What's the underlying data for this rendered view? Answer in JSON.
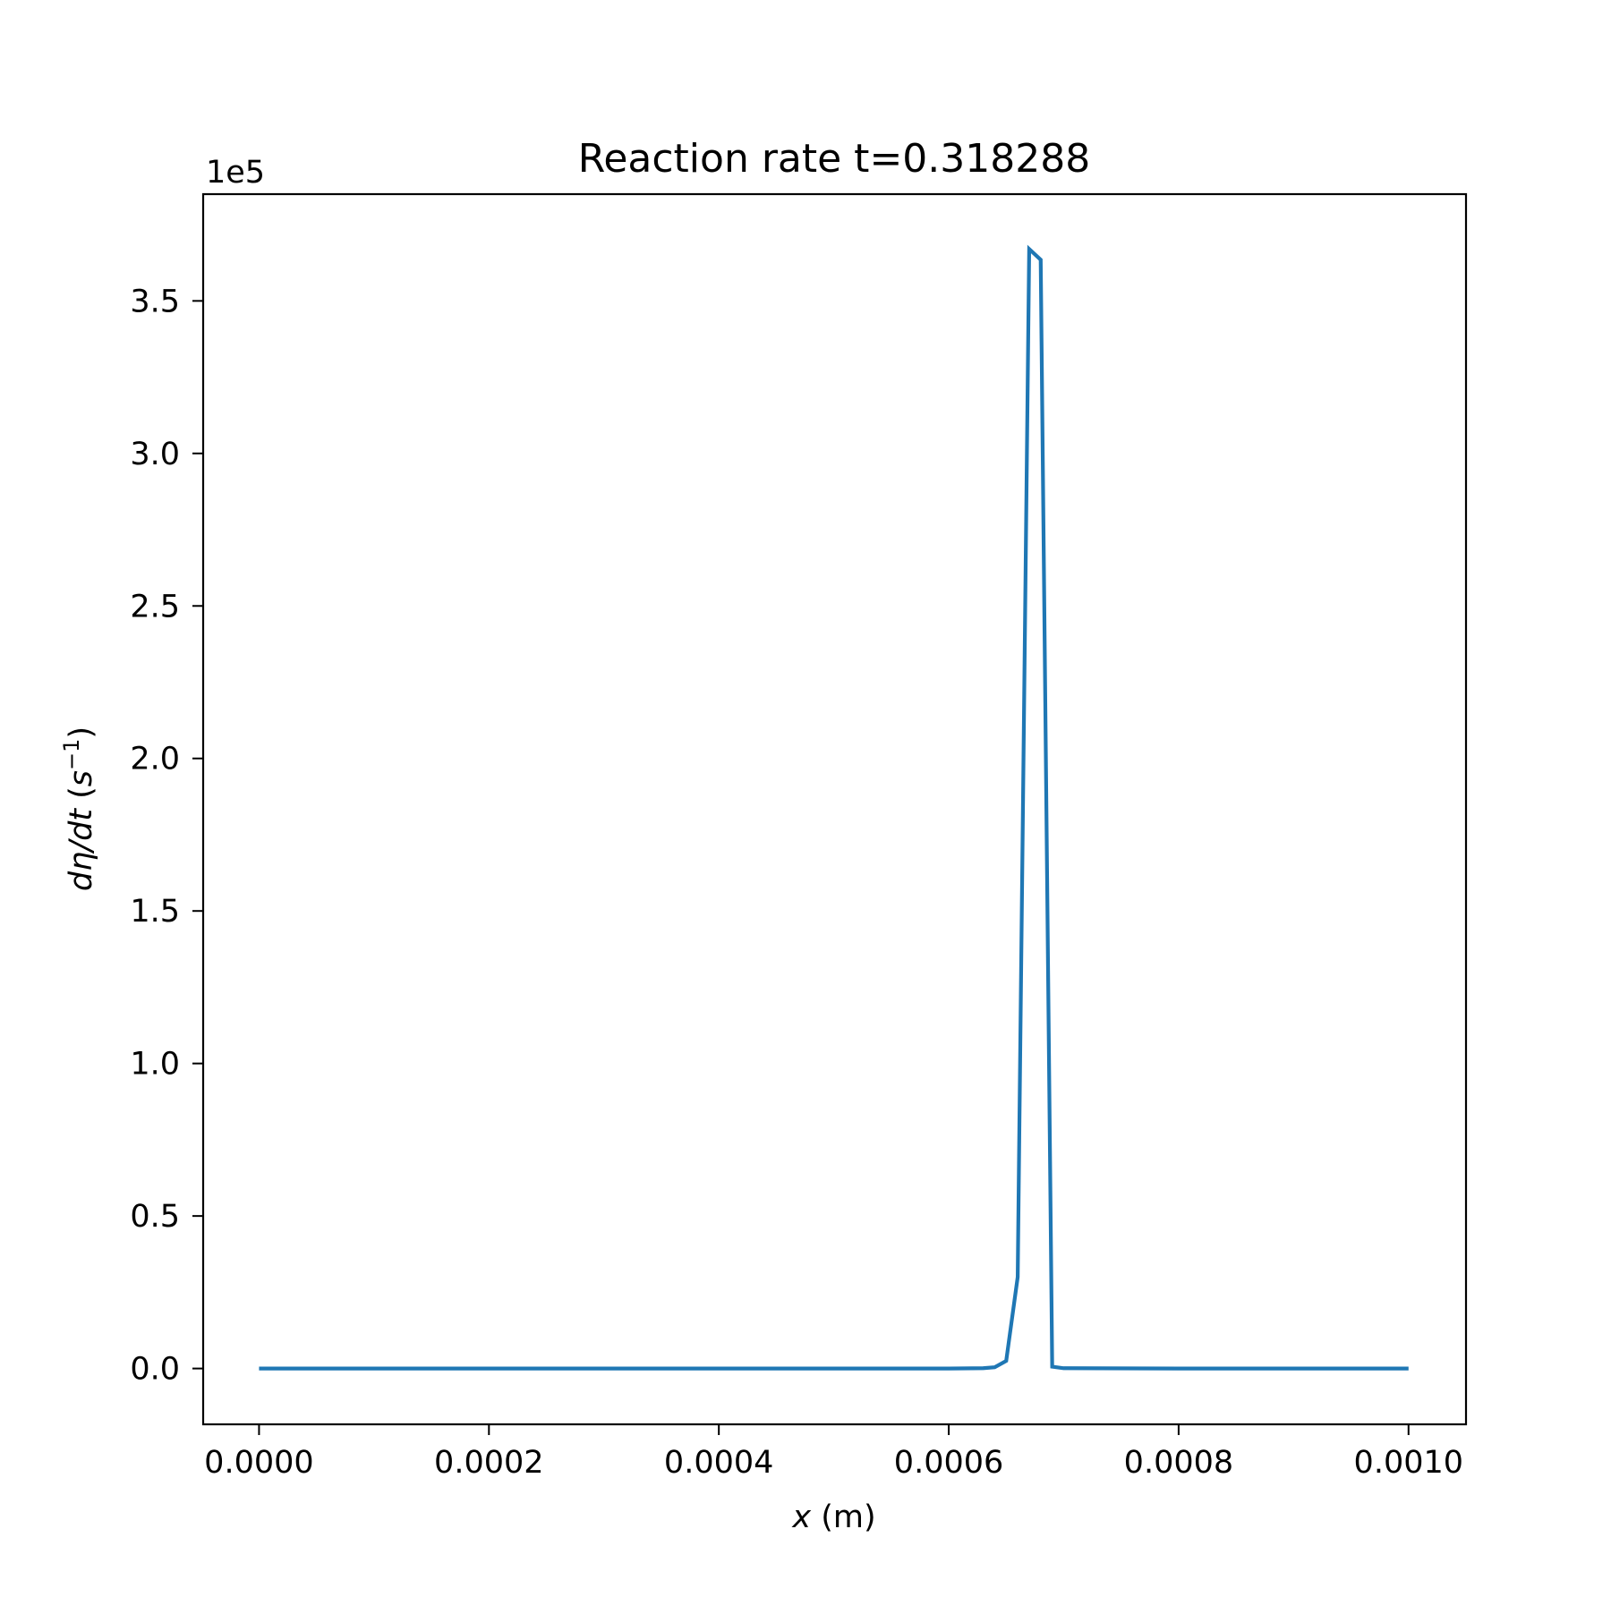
{
  "chart_data": {
    "type": "line",
    "title": "Reaction rate t=0.318288",
    "xlabel": {
      "var": "x",
      "unit": " (m)"
    },
    "ylabel": {
      "var": "dη/dt",
      "unit_open": " (",
      "unit_base": "s",
      "unit_exp": "−1",
      "unit_close": ")"
    },
    "y_offset_label": "1e5",
    "xlim": [
      -4.86e-05,
      0.00105
    ],
    "ylim": [
      -0.183,
      3.85
    ],
    "x_ticks": [
      0.0,
      0.0002,
      0.0004,
      0.0006,
      0.0008,
      0.001
    ],
    "x_tick_labels": [
      "0.0000",
      "0.0002",
      "0.0004",
      "0.0006",
      "0.0008",
      "0.0010"
    ],
    "y_ticks": [
      0.0,
      0.5,
      1.0,
      1.5,
      2.0,
      2.5,
      3.0,
      3.5
    ],
    "y_tick_labels": [
      "0.0",
      "0.5",
      "1.0",
      "1.5",
      "2.0",
      "2.5",
      "3.0",
      "3.5"
    ],
    "grid": false,
    "series": [
      {
        "color": "#1f77b4",
        "x": [
          0.0,
          0.0001,
          0.0002,
          0.0003,
          0.0004,
          0.0005,
          0.0006,
          0.00063,
          0.00064,
          0.00065,
          0.00066,
          0.00067,
          0.00068,
          0.00069,
          0.0007,
          0.0008,
          0.0009,
          0.001
        ],
        "y": [
          0.0,
          0.0,
          0.0,
          0.0,
          0.0,
          0.0,
          0.0,
          0.001,
          0.004,
          0.025,
          0.3,
          3.67,
          3.635,
          0.006,
          0.001,
          0.0,
          0.0,
          0.0
        ]
      }
    ]
  }
}
